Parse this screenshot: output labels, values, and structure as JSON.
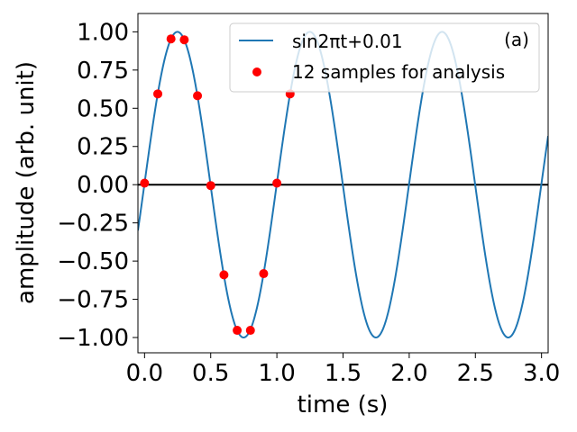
{
  "chart_data": {
    "type": "line",
    "annotation": "(a)",
    "xlabel": "time (s)",
    "ylabel": "amplitude (arb. unit)",
    "xlim": [
      -0.05,
      3.05
    ],
    "ylim": [
      -1.1,
      1.12
    ],
    "xticks": [
      0.0,
      0.5,
      1.0,
      1.5,
      2.0,
      2.5,
      3.0
    ],
    "xtick_labels": [
      "0.0",
      "0.5",
      "1.0",
      "1.5",
      "2.0",
      "2.5",
      "3.0"
    ],
    "yticks": [
      1.0,
      0.75,
      0.5,
      0.25,
      0.0,
      -0.25,
      -0.5,
      -0.75,
      -1.0
    ],
    "ytick_labels": [
      "1.00",
      "0.75",
      "0.50",
      "0.25",
      "0.00",
      "−0.25",
      "−0.50",
      "−0.75",
      "−1.00"
    ],
    "zero_line": 0,
    "grid": false,
    "legend_placement": "top-right",
    "series": [
      {
        "name": "sin2πt+0.01",
        "kind": "line",
        "color": "#1f77b4",
        "x_range": [
          -0.05,
          3.05
        ],
        "formula": "sin(2*pi*t + 0.01)"
      },
      {
        "name": "12 samples for analysis",
        "kind": "scatter",
        "color": "#ff0000",
        "x": [
          0.0,
          0.1,
          0.2,
          0.3,
          0.4,
          0.5,
          0.6,
          0.7,
          0.8,
          0.9,
          1.0,
          1.1
        ],
        "y": [
          0.01,
          0.594,
          0.954,
          0.948,
          0.582,
          -0.006,
          -0.59,
          -0.953,
          -0.953,
          -0.582,
          0.01,
          0.594
        ]
      }
    ]
  }
}
